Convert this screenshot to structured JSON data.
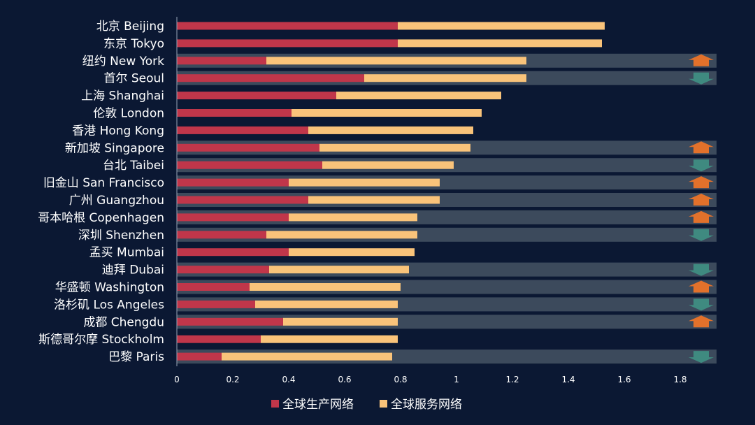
{
  "chart_data": {
    "type": "bar",
    "orientation": "horizontal",
    "stacked": true,
    "categories": [
      "北京 Beijing",
      "东京 Tokyo",
      "纽约 New York",
      "首尔 Seoul",
      "上海 Shanghai",
      "伦敦 London",
      "香港 Hong Kong",
      "新加坡 Singapore",
      "台北 Taibei",
      "旧金山 San Francisco",
      "广州 Guangzhou",
      "哥本哈根 Copenhagen",
      "深圳 Shenzhen",
      "孟买 Mumbai",
      "迪拜 Dubai",
      "华盛顿 Washington",
      "洛杉矶 Los Angeles",
      "成都 Chengdu",
      "斯德哥尔摩 Stockholm",
      "巴黎 Paris"
    ],
    "series": [
      {
        "name": "全球生产网络",
        "color": "#c0364a",
        "values": [
          0.79,
          0.79,
          0.32,
          0.67,
          0.57,
          0.41,
          0.47,
          0.51,
          0.52,
          0.4,
          0.47,
          0.4,
          0.32,
          0.4,
          0.33,
          0.26,
          0.28,
          0.38,
          0.3,
          0.16
        ]
      },
      {
        "name": "全球服务网络",
        "color": "#f9c37a",
        "values": [
          0.74,
          0.73,
          0.93,
          0.58,
          0.59,
          0.68,
          0.59,
          0.54,
          0.47,
          0.54,
          0.47,
          0.46,
          0.54,
          0.45,
          0.5,
          0.54,
          0.51,
          0.41,
          0.49,
          0.61
        ]
      }
    ],
    "xlim": [
      0,
      1.9
    ],
    "xticks": [
      "0",
      "0.2",
      "0.4",
      "0.6",
      "0.8",
      "1",
      "1.2",
      "1.4",
      "1.6",
      "1.8"
    ],
    "highlight_band_color": "#3c4a5c",
    "trend": [
      "none",
      "none",
      "up",
      "down",
      "none",
      "none",
      "none",
      "up",
      "down",
      "up",
      "up",
      "up",
      "down",
      "none",
      "down",
      "up",
      "down",
      "up",
      "none",
      "down"
    ],
    "trend_colors": {
      "up": "#e2712b",
      "down": "#3f8a80"
    },
    "legend_position": "bottom"
  }
}
